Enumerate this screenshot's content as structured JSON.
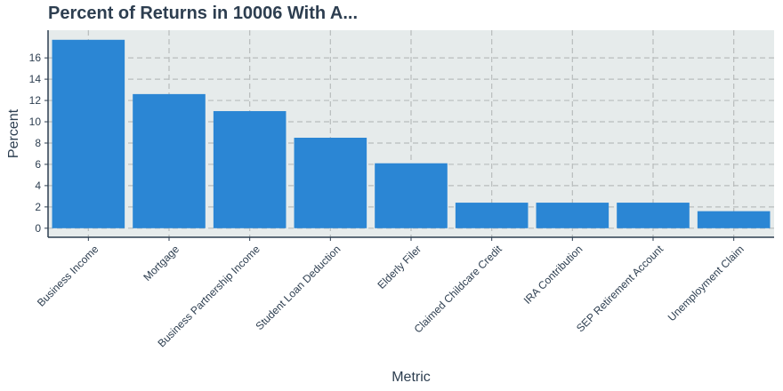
{
  "chart_data": {
    "type": "bar",
    "title": "Percent of Returns in 10006 With A...",
    "xlabel": "Metric",
    "ylabel": "Percent",
    "categories": [
      "Business Income",
      "Mortgage",
      "Business Partnership Income",
      "Student Loan Deduction",
      "Elderly Filer",
      "Claimed Childcare Credit",
      "IRA Contribution",
      "SEP Retirement Account",
      "Unemployment Claim"
    ],
    "values": [
      17.7,
      12.6,
      11.0,
      8.5,
      6.1,
      2.4,
      2.4,
      2.4,
      1.6
    ],
    "yticks": [
      0,
      2,
      4,
      6,
      8,
      10,
      12,
      14,
      16
    ],
    "ylim": [
      -0.85,
      18.6
    ],
    "grid": true,
    "colors": {
      "bar": "#2b86d4",
      "panel": "#e6ebeb",
      "grid": "#b8bcbc",
      "axis": "#2d3e50"
    }
  }
}
